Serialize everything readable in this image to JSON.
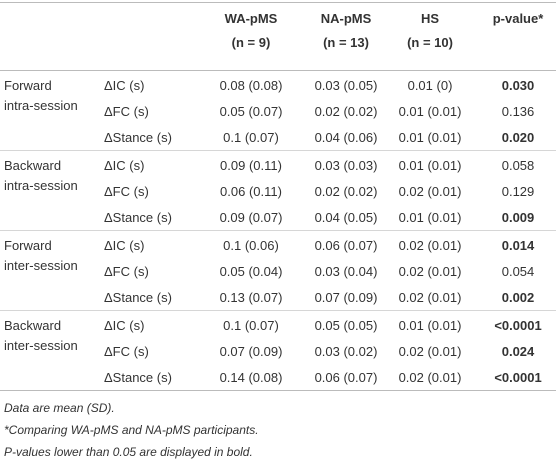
{
  "header": {
    "columns": [
      {
        "name": "WA-pMS",
        "n": "(n = 9)"
      },
      {
        "name": "NA-pMS",
        "n": "(n = 13)"
      },
      {
        "name": "HS",
        "n": "(n = 10)"
      }
    ],
    "pvalue": "p-value*"
  },
  "groups": [
    {
      "label": [
        "Forward",
        "intra-session"
      ],
      "rows": [
        {
          "measure": "ΔIC (s)",
          "values": [
            "0.08 (0.08)",
            "0.03 (0.05)",
            "0.01 (0)"
          ],
          "p": "0.030",
          "bold": true
        },
        {
          "measure": "ΔFC (s)",
          "values": [
            "0.05 (0.07)",
            "0.02 (0.02)",
            "0.01 (0.01)"
          ],
          "p": "0.136",
          "bold": false
        },
        {
          "measure": "ΔStance (s)",
          "values": [
            "0.1 (0.07)",
            "0.04 (0.06)",
            "0.01 (0.01)"
          ],
          "p": "0.020",
          "bold": true
        }
      ]
    },
    {
      "label": [
        "Backward",
        "intra-session"
      ],
      "rows": [
        {
          "measure": "ΔIC (s)",
          "values": [
            "0.09 (0.11)",
            "0.03 (0.03)",
            "0.01 (0.01)"
          ],
          "p": "0.058",
          "bold": false
        },
        {
          "measure": "ΔFC (s)",
          "values": [
            "0.06 (0.11)",
            "0.02 (0.02)",
            "0.02 (0.01)"
          ],
          "p": "0.129",
          "bold": false
        },
        {
          "measure": "ΔStance (s)",
          "values": [
            "0.09 (0.07)",
            "0.04 (0.05)",
            "0.01 (0.01)"
          ],
          "p": "0.009",
          "bold": true
        }
      ]
    },
    {
      "label": [
        "Forward",
        "inter-session"
      ],
      "rows": [
        {
          "measure": "ΔIC (s)",
          "values": [
            "0.1 (0.06)",
            "0.06 (0.07)",
            "0.02 (0.01)"
          ],
          "p": "0.014",
          "bold": true
        },
        {
          "measure": "ΔFC (s)",
          "values": [
            "0.05 (0.04)",
            "0.03 (0.04)",
            "0.02 (0.01)"
          ],
          "p": "0.054",
          "bold": false
        },
        {
          "measure": "ΔStance (s)",
          "values": [
            "0.13 (0.07)",
            "0.07 (0.09)",
            "0.02 (0.01)"
          ],
          "p": "0.002",
          "bold": true
        }
      ]
    },
    {
      "label": [
        "Backward",
        "inter-session"
      ],
      "rows": [
        {
          "measure": "ΔIC (s)",
          "values": [
            "0.1 (0.07)",
            "0.05 (0.05)",
            "0.01 (0.01)"
          ],
          "p": "<0.0001",
          "bold": true
        },
        {
          "measure": "ΔFC (s)",
          "values": [
            "0.07 (0.09)",
            "0.03 (0.02)",
            "0.02 (0.01)"
          ],
          "p": "0.024",
          "bold": true
        },
        {
          "measure": "ΔStance (s)",
          "values": [
            "0.14 (0.08)",
            "0.06 (0.07)",
            "0.02 (0.01)"
          ],
          "p": "<0.0001",
          "bold": true
        }
      ]
    }
  ],
  "footnotes": [
    "Data are mean (SD).",
    "*Comparing WA-pMS and NA-pMS participants.",
    "P-values lower than 0.05 are displayed in bold."
  ]
}
